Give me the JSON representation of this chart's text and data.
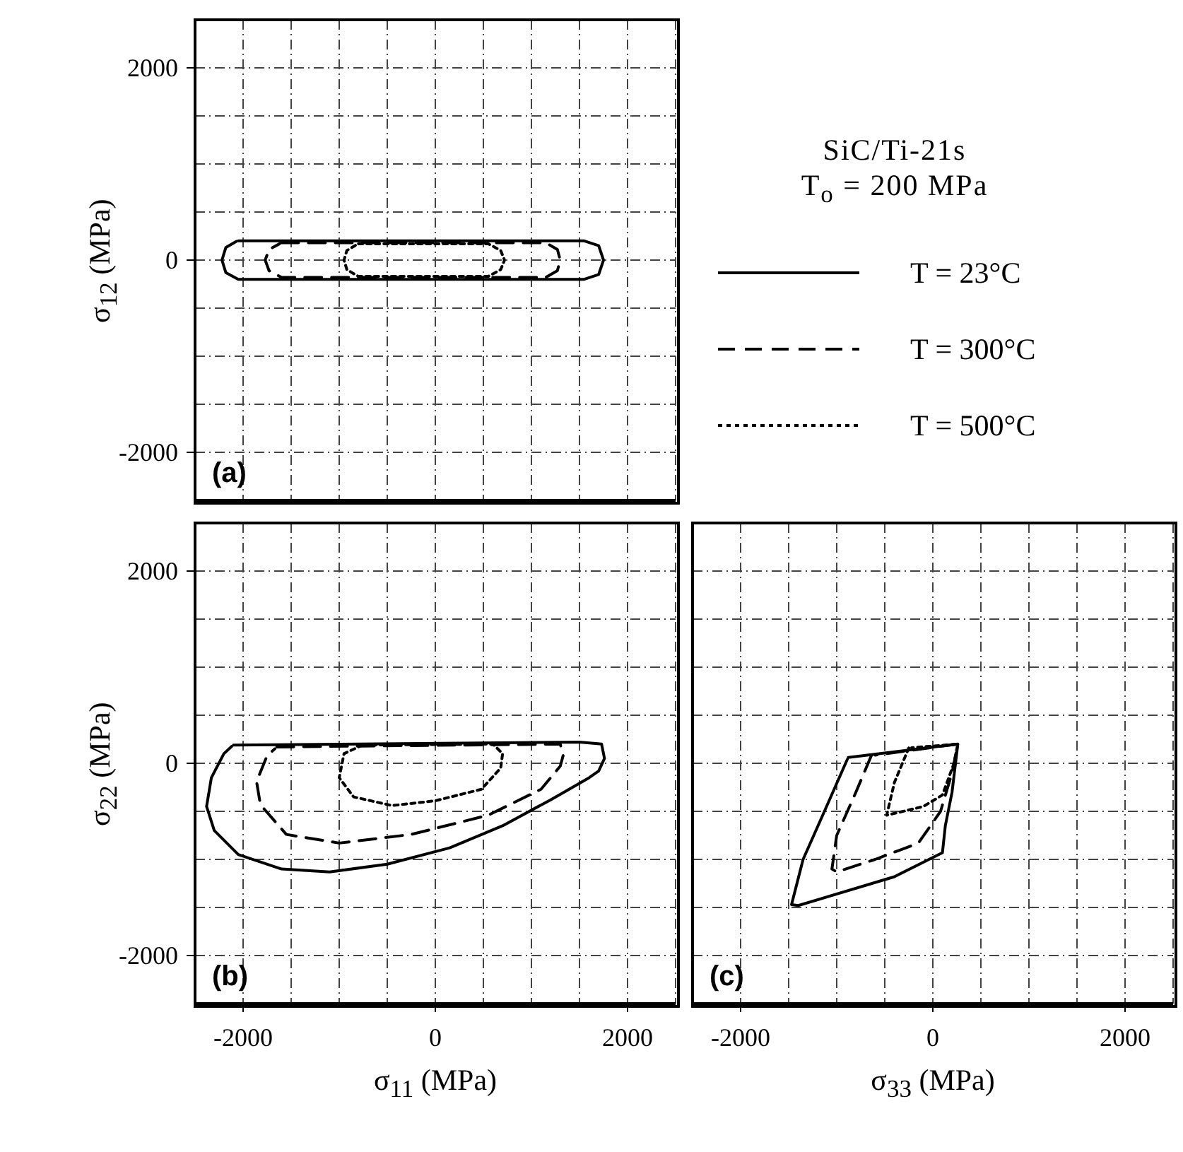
{
  "chart_data": [
    {
      "type": "line",
      "title": "(a)",
      "ylabel": "σ$_{12}$ (MPa)",
      "xlim": [
        -2500,
        2500
      ],
      "ylim": [
        -2500,
        2500
      ],
      "xticks": [
        {
          "value": -2500,
          "label": null
        },
        -2000,
        {
          "value": -1500,
          "label": null
        },
        {
          "value": -1000,
          "label": null
        },
        {
          "value": -500,
          "label": null
        },
        0,
        {
          "value": 500,
          "label": null
        },
        {
          "value": 1000,
          "label": null
        },
        {
          "value": 1500,
          "label": null
        },
        2000,
        {
          "value": 2500,
          "label": null
        }
      ],
      "yticks": [
        {
          "value": -2500,
          "label": null
        },
        -2000,
        {
          "value": -1500,
          "label": null
        },
        {
          "value": -1000,
          "label": null
        },
        {
          "value": -500,
          "label": null
        },
        0,
        {
          "value": 500,
          "label": null
        },
        {
          "value": 1000,
          "label": null
        },
        {
          "value": 1500,
          "label": null
        },
        2000,
        {
          "value": 2500,
          "label": null
        }
      ],
      "tick_labels": "y",
      "grid": true,
      "legend": "right",
      "annotations": [
        "SiC/Ti-21s",
        "T$_{o}$ = 200 MPa"
      ],
      "series": [
        {
          "name": "T = 23°C",
          "color": "#000000",
          "line_style": "solid",
          "x": [
            -2050,
            1550,
            1700,
            1750,
            1700,
            1550,
            -2050,
            -2180,
            -2220,
            -2180,
            -2070
          ],
          "values": [
            200,
            200,
            150,
            0,
            -150,
            -200,
            -200,
            -130,
            0,
            130,
            195
          ]
        },
        {
          "name": "T = 300°C",
          "color": "#000000",
          "line_style": "dashed",
          "x": [
            -1600,
            1150,
            1270,
            1300,
            1270,
            1150,
            -1600,
            -1730,
            -1770,
            -1730,
            -1620
          ],
          "values": [
            180,
            180,
            110,
            0,
            -110,
            -180,
            -180,
            -110,
            0,
            110,
            170
          ]
        },
        {
          "name": "T = 500°C",
          "color": "#000000",
          "line_style": "dotted",
          "x": [
            -800,
            550,
            680,
            720,
            680,
            550,
            -800,
            -920,
            -950,
            -920,
            -820
          ],
          "values": [
            170,
            170,
            100,
            0,
            -100,
            -170,
            -170,
            -100,
            0,
            100,
            160
          ]
        }
      ]
    },
    {
      "type": "line",
      "title": "(b)",
      "xlabel": "σ$_{11}$ (MPa)",
      "ylabel": "σ$_{22}$ (MPa)",
      "xlim": [
        -2500,
        2500
      ],
      "ylim": [
        -2500,
        2500
      ],
      "xticks": [
        {
          "value": -2500,
          "label": null
        },
        -2000,
        {
          "value": -1500,
          "label": null
        },
        {
          "value": -1000,
          "label": null
        },
        {
          "value": -500,
          "label": null
        },
        0,
        {
          "value": 500,
          "label": null
        },
        {
          "value": 1000,
          "label": null
        },
        {
          "value": 1500,
          "label": null
        },
        2000,
        {
          "value": 2500,
          "label": null
        }
      ],
      "yticks": [
        {
          "value": -2500,
          "label": null
        },
        -2000,
        {
          "value": -1500,
          "label": null
        },
        {
          "value": -1000,
          "label": null
        },
        {
          "value": -500,
          "label": null
        },
        0,
        {
          "value": 500,
          "label": null
        },
        {
          "value": 1000,
          "label": null
        },
        {
          "value": 1500,
          "label": null
        },
        2000,
        {
          "value": 2500,
          "label": null
        }
      ],
      "grid": true,
      "series": [
        {
          "color": "#000000",
          "line_style": "solid",
          "x": [
            -2100,
            1500,
            1730,
            1760,
            1700,
            1600,
            1200,
            700,
            150,
            -500,
            -1100,
            -1600,
            -2050,
            -2300,
            -2380,
            -2330,
            -2200,
            -2120
          ],
          "values": [
            190,
            220,
            200,
            50,
            -80,
            -150,
            -380,
            -650,
            -880,
            -1050,
            -1130,
            -1100,
            -950,
            -700,
            -450,
            -150,
            100,
            175
          ]
        },
        {
          "color": "#000000",
          "line_style": "dashed",
          "x": [
            -1650,
            1300,
            1330,
            1300,
            1100,
            550,
            -250,
            -1000,
            -1550,
            -1820,
            -1860,
            -1750,
            -1670
          ],
          "values": [
            170,
            200,
            80,
            -30,
            -270,
            -540,
            -740,
            -830,
            -740,
            -430,
            -190,
            80,
            150
          ]
        },
        {
          "color": "#000000",
          "line_style": "dotted",
          "x": [
            -750,
            600,
            700,
            680,
            480,
            0,
            -450,
            -850,
            -1000,
            -950,
            -780
          ],
          "values": [
            190,
            200,
            100,
            -50,
            -270,
            -390,
            -440,
            -350,
            -150,
            100,
            180
          ]
        }
      ]
    },
    {
      "type": "line",
      "title": "(c)",
      "xlabel": "σ$_{33}$ (MPa)",
      "xlim": [
        -2500,
        2500
      ],
      "ylim": [
        -2500,
        2500
      ],
      "xticks": [
        {
          "value": -2500,
          "label": null
        },
        -2000,
        {
          "value": -1500,
          "label": null
        },
        {
          "value": -1000,
          "label": null
        },
        {
          "value": -500,
          "label": null
        },
        0,
        {
          "value": 500,
          "label": null
        },
        {
          "value": 1000,
          "label": null
        },
        {
          "value": 1500,
          "label": null
        },
        2000,
        {
          "value": 2500,
          "label": null
        }
      ],
      "yticks": [
        {
          "value": -2500,
          "label": null
        },
        -2000,
        {
          "value": -1500,
          "label": null
        },
        {
          "value": -1000,
          "label": null
        },
        {
          "value": -500,
          "label": null
        },
        0,
        {
          "value": 500,
          "label": null
        },
        {
          "value": 1000,
          "label": null
        },
        {
          "value": 1500,
          "label": null
        },
        2000,
        {
          "value": 2500,
          "label": null
        }
      ],
      "tick_labels": "x",
      "grid": true,
      "series": [
        {
          "color": "#000000",
          "line_style": "solid",
          "x": [
            -880,
            260,
            200,
            130,
            100,
            -400,
            -1400,
            -1470,
            -1350,
            -1150,
            -890
          ],
          "values": [
            60,
            200,
            -300,
            -650,
            -930,
            -1180,
            -1480,
            -1470,
            -1000,
            -550,
            40
          ]
        },
        {
          "color": "#000000",
          "line_style": "dashed",
          "x": [
            -640,
            -800,
            -1000,
            -1050,
            -1000,
            -600,
            -150,
            80,
            200,
            260,
            -600
          ],
          "values": [
            80,
            -300,
            -750,
            -1100,
            -1130,
            -1000,
            -830,
            -500,
            -100,
            200,
            85
          ]
        },
        {
          "color": "#000000",
          "line_style": "dotted",
          "x": [
            -250,
            -400,
            -480,
            -100,
            100,
            220,
            260,
            -220
          ],
          "values": [
            160,
            -200,
            -540,
            -450,
            -330,
            0,
            200,
            162
          ]
        }
      ]
    }
  ]
}
